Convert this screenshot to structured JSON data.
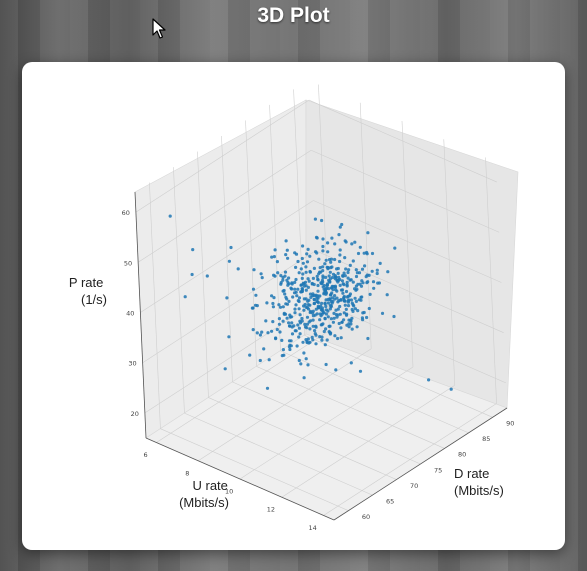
{
  "window": {
    "title": "3D Plot"
  },
  "chart_data": {
    "type": "scatter",
    "projection": "3d",
    "color": "#1f77b4",
    "xlabel": "U rate\n(Mbits/s)",
    "ylabel": "D rate\n(Mbits/s)",
    "zlabel": "P rate\n(1/s)",
    "xticks": [
      "6",
      "8",
      "10",
      "12",
      "14"
    ],
    "yticks": [
      "60",
      "65",
      "70",
      "75",
      "80",
      "85",
      "90"
    ],
    "zticks": [
      "20",
      "30",
      "40",
      "50",
      "60"
    ],
    "xlim": [
      5.5,
      14.5
    ],
    "ylim": [
      57,
      93
    ],
    "zlim": [
      15,
      64
    ],
    "cluster": {
      "center": [
        10.0,
        75.0,
        40.0
      ],
      "spread": [
        0.8,
        4.5,
        4.5
      ],
      "count": 520
    },
    "outliers": [
      [
        6.2,
        61,
        58
      ],
      [
        6.5,
        64,
        50
      ],
      [
        7.0,
        60,
        44
      ],
      [
        7.4,
        63,
        47
      ],
      [
        8.2,
        66,
        48
      ],
      [
        7.1,
        68,
        39
      ],
      [
        8.0,
        70,
        45
      ],
      [
        9.1,
        61,
        57
      ],
      [
        11.8,
        60,
        56
      ],
      [
        12.6,
        61,
        52
      ],
      [
        13.4,
        62,
        56
      ],
      [
        13.7,
        65,
        53
      ],
      [
        13.2,
        70,
        49
      ],
      [
        12.6,
        78,
        48
      ],
      [
        11.3,
        85,
        46
      ],
      [
        6.4,
        75,
        22
      ],
      [
        7.6,
        80,
        20
      ],
      [
        8.5,
        78,
        22
      ],
      [
        9.6,
        84,
        19
      ],
      [
        11.7,
        89,
        18
      ],
      [
        12.3,
        91,
        16
      ],
      [
        8.8,
        66,
        37
      ],
      [
        7.9,
        72,
        42
      ],
      [
        9.4,
        70,
        46
      ],
      [
        10.8,
        68,
        47
      ],
      [
        11.6,
        73,
        44
      ],
      [
        12.1,
        76,
        41
      ],
      [
        6.9,
        62,
        47
      ],
      [
        7.6,
        71,
        36
      ],
      [
        8.4,
        73,
        33
      ]
    ]
  }
}
